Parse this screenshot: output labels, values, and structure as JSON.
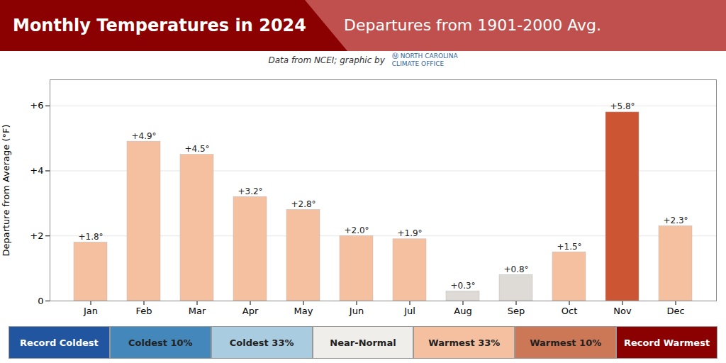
{
  "chart_data": {
    "type": "bar",
    "title": "Monthly Temperatures in 2024",
    "subtitle": "Departures from 1901-2000 Avg.",
    "header_colors": [
      "#8b0000",
      "#c0504d"
    ],
    "annotations": [
      "Data from NCEI; graphic by",
      "Ⓜ NORTH CAROLINA",
      "CLIMATE OFFICE"
    ],
    "ylabel": "Departure from Average (°F)",
    "categories": [
      "Jan",
      "Feb",
      "Mar",
      "Apr",
      "May",
      "Jun",
      "Jul",
      "Aug",
      "Sep",
      "Oct",
      "Nov",
      "Dec"
    ],
    "values": [
      1.8,
      4.9,
      4.5,
      3.2,
      2.8,
      2.0,
      1.9,
      0.3,
      0.8,
      1.5,
      5.8,
      2.3
    ],
    "value_labels": [
      "+1.8°",
      "+4.9°",
      "+4.5°",
      "+3.2°",
      "+2.8°",
      "+2.0°",
      "+1.9°",
      "+0.3°",
      "+0.8°",
      "+1.5°",
      "+5.8°",
      "+2.3°"
    ],
    "data_labels": true,
    "colors": [
      "#f5c0a0",
      "#f5c0a0",
      "#f5c0a0",
      "#f5c0a0",
      "#f5c0a0",
      "#f5c0a0",
      "#f5c0a0",
      "#dedad6",
      "#dedad6",
      "#f5c0a0",
      "#cc5533",
      "#f5c0a0"
    ],
    "ylim": [
      0,
      6.8
    ],
    "yticks": [
      0,
      {
        "value": 2,
        "label": "+2"
      },
      {
        "value": 4,
        "label": "+4"
      },
      {
        "value": 6,
        "label": "+6"
      }
    ],
    "grid": true,
    "legend": "bottom",
    "legend_items": [
      {
        "name": "Record Coldest",
        "color": "#2255a0",
        "text_color": "#ffffff"
      },
      {
        "name": "Coldest 10%",
        "color": "#4488bb",
        "text_color": "#222222"
      },
      {
        "name": "Coldest 33%",
        "color": "#aacce0",
        "text_color": "#222222"
      },
      {
        "name": "Near-Normal",
        "color": "#f0eeeb",
        "text_color": "#222222"
      },
      {
        "name": "Warmest 33%",
        "color": "#f5c0a0",
        "text_color": "#222222"
      },
      {
        "name": "Warmest 10%",
        "color": "#cc7755",
        "text_color": "#222222"
      },
      {
        "name": "Record Warmest",
        "color": "#8b0000",
        "text_color": "#ffffff"
      }
    ]
  }
}
